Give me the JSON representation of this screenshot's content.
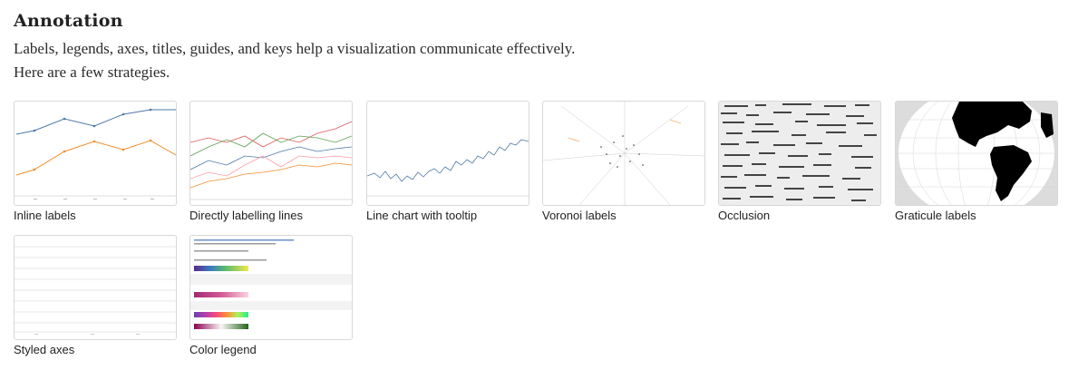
{
  "section": {
    "title": "Annotation",
    "description": "Labels, legends, axes, titles, guides, and keys help a visualization communicate effectively. Here are a few strategies."
  },
  "cards": [
    {
      "label": "Inline labels",
      "icon": "inline-labels-thumbnail"
    },
    {
      "label": "Directly labelling lines",
      "icon": "directly-labelling-lines-thumbnail"
    },
    {
      "label": "Line chart with tooltip",
      "icon": "line-chart-tooltip-thumbnail"
    },
    {
      "label": "Voronoi labels",
      "icon": "voronoi-labels-thumbnail"
    },
    {
      "label": "Occlusion",
      "icon": "occlusion-thumbnail"
    },
    {
      "label": "Graticule labels",
      "icon": "graticule-labels-thumbnail"
    },
    {
      "label": "Styled axes",
      "icon": "styled-axes-thumbnail"
    },
    {
      "label": "Color legend",
      "icon": "color-legend-thumbnail"
    }
  ],
  "colors": {
    "series_blue": "#4e79a7",
    "series_orange": "#f28e2b",
    "series_red": "#e15759",
    "series_green": "#59a14f",
    "series_pink": "#ff9da7"
  }
}
